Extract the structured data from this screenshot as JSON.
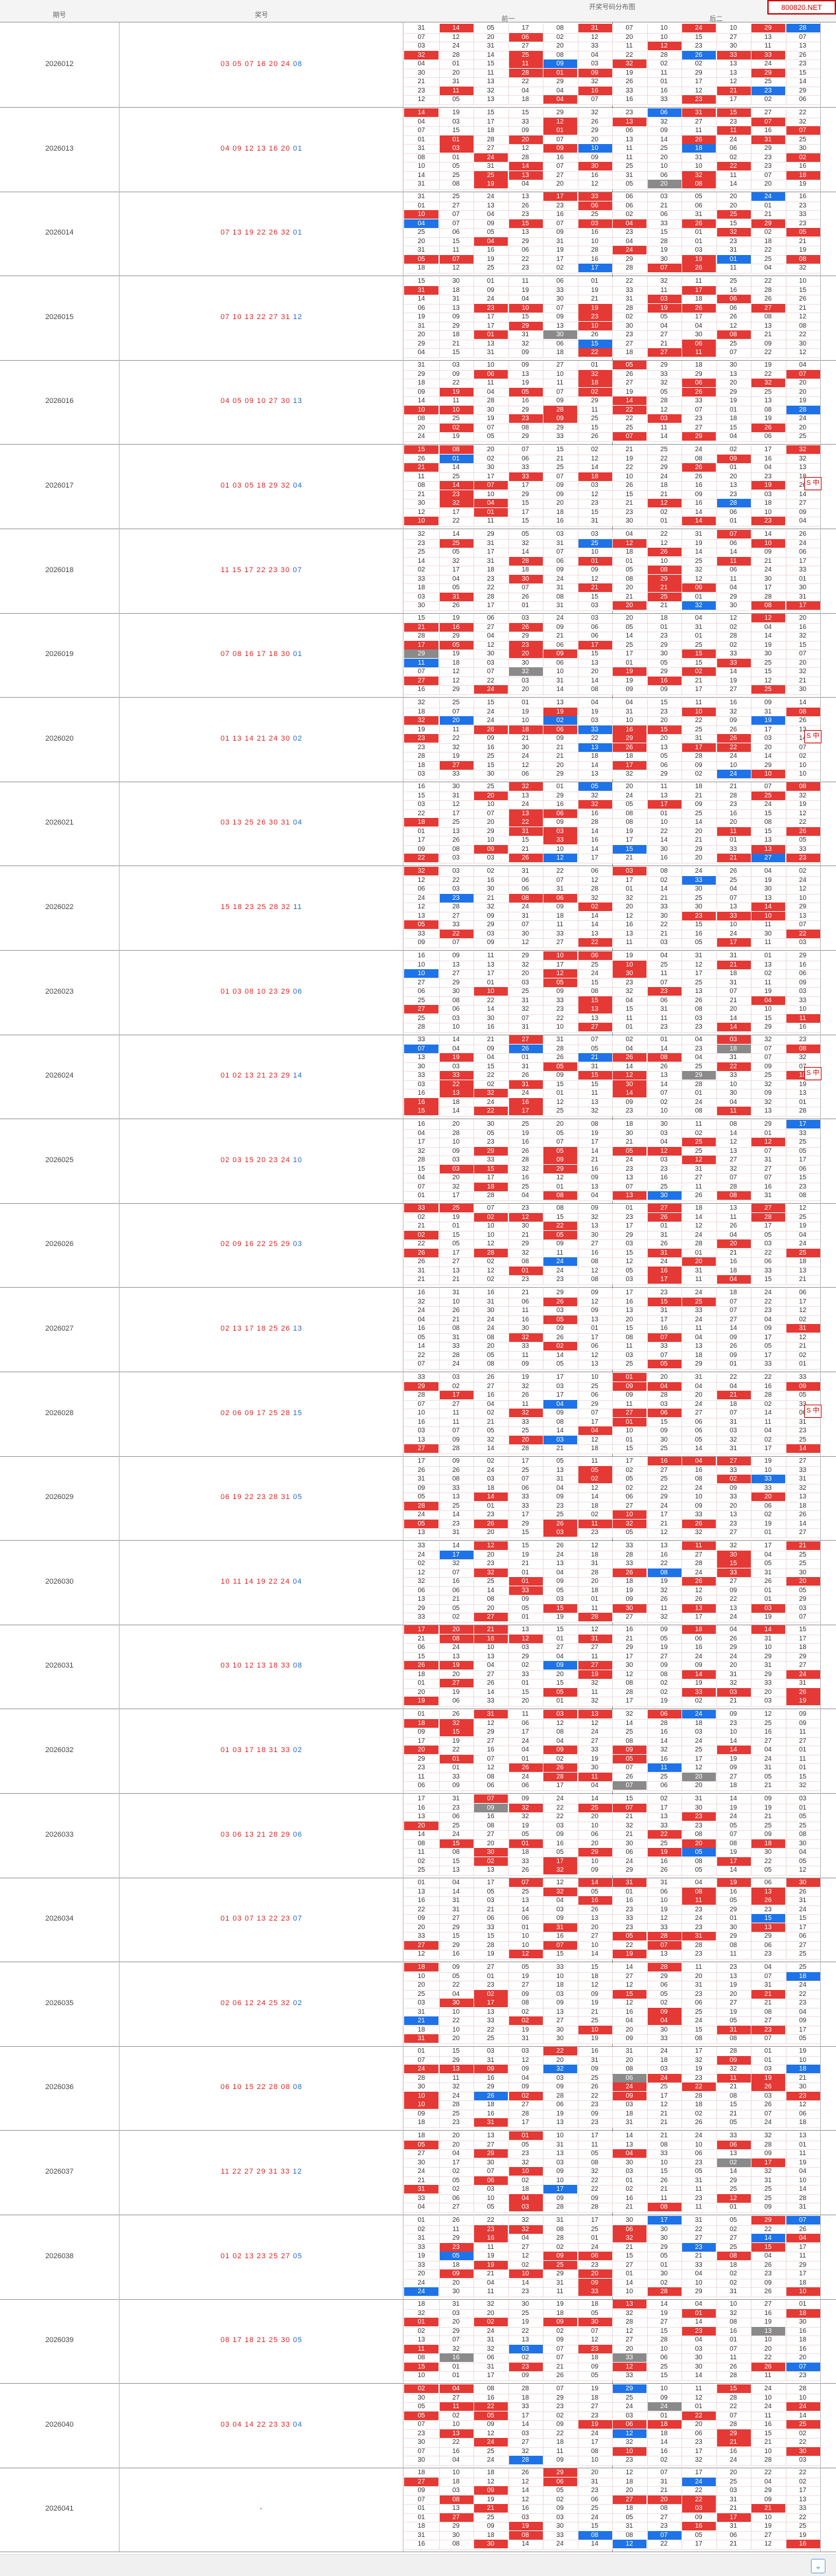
{
  "header": {
    "col_period": "期号",
    "col_numbers": "奖号",
    "col_title": "开奖号码分布图",
    "front_label": "前一",
    "back_label": "后二",
    "brand": "800820.NET"
  },
  "side_label": "S 中",
  "rows": [
    {
      "period": "2026012",
      "red": "03 05 07 16 20 24",
      "blue": "08",
      "empty": false
    },
    {
      "period": "2026013",
      "red": "04 09 12 13 16 20",
      "blue": "01",
      "empty": false
    },
    {
      "period": "2026014",
      "red": "07 13 19 22 26 32",
      "blue": "01",
      "empty": false
    },
    {
      "period": "2026015",
      "red": "07 10 13 22 27 31",
      "blue": "12",
      "empty": false
    },
    {
      "period": "2026016",
      "red": "04 05 09 10 27 30",
      "blue": "13",
      "empty": false
    },
    {
      "period": "2026017",
      "red": "01 03 05 18 29 32",
      "blue": "04",
      "empty": false
    },
    {
      "period": "2026018",
      "red": "11 15 17 22 23 30",
      "blue": "07",
      "empty": false
    },
    {
      "period": "2026019",
      "red": "07 08 16 17 18 30",
      "blue": "01",
      "empty": false
    },
    {
      "period": "2026020",
      "red": "01 13 14 21 24 30",
      "blue": "02",
      "empty": false
    },
    {
      "period": "2026021",
      "red": "03 13 25 26 30 31",
      "blue": "04",
      "empty": false
    },
    {
      "period": "2026022",
      "red": "15 18 23 25 28 32",
      "blue": "11",
      "empty": false
    },
    {
      "period": "2026023",
      "red": "01 03 08 10 23 29",
      "blue": "06",
      "empty": false
    },
    {
      "period": "2026024",
      "red": "01 02 13 21 23 29",
      "blue": "14",
      "empty": false
    },
    {
      "period": "2026025",
      "red": "02 03 15 20 23 24",
      "blue": "10",
      "empty": false
    },
    {
      "period": "2026026",
      "red": "02 09 16 22 25 29",
      "blue": "03",
      "empty": false
    },
    {
      "period": "2026027",
      "red": "02 13 17 18 25 26",
      "blue": "13",
      "empty": false
    },
    {
      "period": "2026028",
      "red": "02 06 09 17 25 28",
      "blue": "15",
      "empty": false
    },
    {
      "period": "2026029",
      "red": "06 19 22 23 28 31",
      "blue": "05",
      "empty": false
    },
    {
      "period": "2026030",
      "red": "10 11 14 19 22 24",
      "blue": "04",
      "empty": false
    },
    {
      "period": "2026031",
      "red": "03 10 12 13 18 33",
      "blue": "08",
      "empty": false
    },
    {
      "period": "2026032",
      "red": "01 03 17 18 31 33",
      "blue": "02",
      "empty": false
    },
    {
      "period": "2026033",
      "red": "03 06 13 21 28 29",
      "blue": "06",
      "empty": false
    },
    {
      "period": "2026034",
      "red": "01 03 07 13 22 23",
      "blue": "07",
      "empty": false
    },
    {
      "period": "2026035",
      "red": "02 06 12 24 25 32",
      "blue": "02",
      "empty": false
    },
    {
      "period": "2026036",
      "red": "06 10 15 22 28 08",
      "blue": "08",
      "empty": false
    },
    {
      "period": "2026037",
      "red": "11 22 27 29 31 33",
      "blue": "12",
      "empty": false
    },
    {
      "period": "2026038",
      "red": "01 02 13 23 25 27",
      "blue": "05",
      "empty": false
    },
    {
      "period": "2026039",
      "red": "08 17 18 21 25 30",
      "blue": "05",
      "empty": false
    },
    {
      "period": "2026040",
      "red": "03 04 14 22 23 33",
      "blue": "04",
      "empty": false
    },
    {
      "period": "2026041",
      "red": "-",
      "blue": "",
      "empty": true
    }
  ]
}
